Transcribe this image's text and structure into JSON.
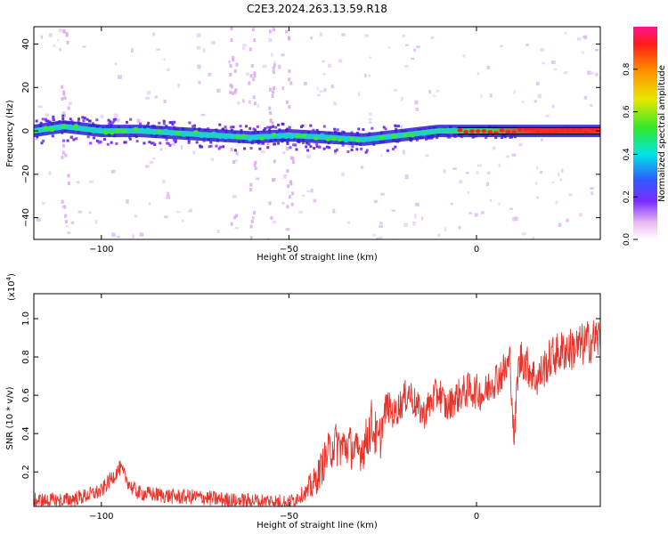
{
  "title": "C2E3.2024.263.13.59.R18",
  "colors": {
    "snr_line": "#e8332b",
    "axis": "#000000",
    "background": "#ffffff"
  },
  "chart_data": [
    {
      "type": "heatmap",
      "name": "spectrogram",
      "xlabel": "Height of straight line (km)",
      "ylabel": "Frequency (Hz)",
      "xlim": [
        -118,
        33
      ],
      "ylim": [
        -50,
        48
      ],
      "xticks": [
        -100,
        -50,
        0
      ],
      "yticks": [
        -40,
        -20,
        0,
        20,
        40
      ],
      "x_tick_labels": [
        "−100",
        "−50",
        "0"
      ],
      "y_tick_labels": [
        "−40",
        "−20",
        "0",
        "20",
        "40"
      ],
      "ridge": {
        "description": "center frequency of dominant signal versus height",
        "x": [
          -118,
          -110,
          -100,
          -90,
          -80,
          -70,
          -60,
          -50,
          -40,
          -30,
          -25,
          -20,
          -10,
          0,
          10,
          20,
          33
        ],
        "y": [
          0,
          2,
          0,
          0,
          -1,
          -2,
          -3,
          -2,
          -3,
          -4,
          -3,
          -2,
          0,
          0,
          0,
          0,
          0
        ]
      },
      "colorbar": {
        "label": "Normalized spectral amplitude",
        "ticks": [
          0.0,
          0.2,
          0.4,
          0.6,
          0.8
        ],
        "tick_labels": [
          "0.0",
          "0.2",
          "0.4",
          "0.6",
          "0.8"
        ]
      }
    },
    {
      "type": "line",
      "name": "snr",
      "xlabel": "Height of straight line (km)",
      "ylabel": "SNR (10 * v/v)",
      "scale_label": "(x10",
      "scale_exp": "4",
      "scale_suffix": ")",
      "xlim": [
        -118,
        33
      ],
      "ylim": [
        0.02,
        1.13
      ],
      "xticks": [
        -100,
        -50,
        0
      ],
      "yticks": [
        0.2,
        0.4,
        0.6,
        0.8,
        1.0
      ],
      "x_tick_labels": [
        "−100",
        "−50",
        "0"
      ],
      "y_tick_labels": [
        "0.2",
        "0.4",
        "0.6",
        "0.8",
        "1.0"
      ],
      "series": [
        {
          "name": "SNR",
          "x": [
            -118,
            -110,
            -105,
            -100,
            -98,
            -95,
            -92,
            -90,
            -85,
            -80,
            -75,
            -70,
            -65,
            -60,
            -55,
            -50,
            -45,
            -43,
            -40,
            -38,
            -36,
            -34,
            -32,
            -30,
            -28,
            -26,
            -24,
            -22,
            -20,
            -18,
            -16,
            -14,
            -12,
            -10,
            -8,
            -6,
            -4,
            -2,
            0,
            2,
            4,
            6,
            8,
            9,
            10,
            11,
            12,
            14,
            16,
            18,
            20,
            22,
            24,
            26,
            28,
            30,
            33
          ],
          "y": [
            0.05,
            0.05,
            0.07,
            0.1,
            0.15,
            0.22,
            0.12,
            0.09,
            0.08,
            0.07,
            0.07,
            0.06,
            0.05,
            0.05,
            0.05,
            0.04,
            0.1,
            0.15,
            0.28,
            0.35,
            0.33,
            0.34,
            0.3,
            0.33,
            0.45,
            0.35,
            0.55,
            0.5,
            0.56,
            0.62,
            0.54,
            0.5,
            0.57,
            0.62,
            0.53,
            0.58,
            0.61,
            0.63,
            0.62,
            0.6,
            0.67,
            0.7,
            0.74,
            0.78,
            0.35,
            0.72,
            0.8,
            0.74,
            0.68,
            0.74,
            0.8,
            0.82,
            0.84,
            0.84,
            0.86,
            0.88,
            0.9
          ]
        }
      ]
    }
  ]
}
